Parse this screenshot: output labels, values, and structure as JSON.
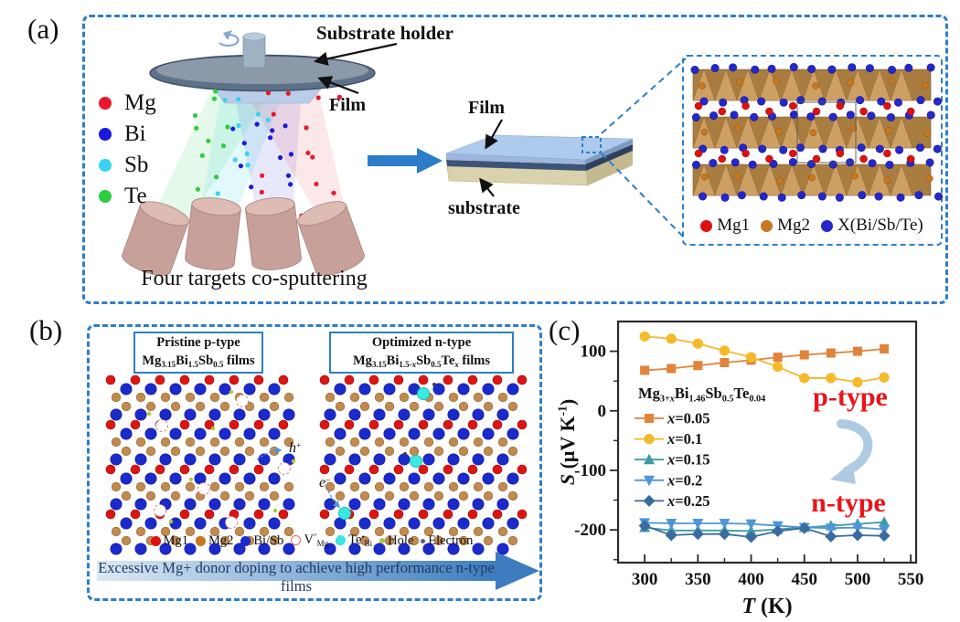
{
  "figure": {
    "panel_a_label": "(a)",
    "panel_b_label": "(b)",
    "panel_c_label": "(c)"
  },
  "panel_a": {
    "substrate_holder_label": "Substrate holder",
    "film_label_top": "Film",
    "caption": "Four targets co-sputtering",
    "legend": [
      {
        "label": "Mg",
        "color": "#E8192C"
      },
      {
        "label": "Bi",
        "color": "#1A1ADB"
      },
      {
        "label": "Sb",
        "color": "#35D3EF"
      },
      {
        "label": "Te",
        "color": "#2ECC40"
      }
    ],
    "slab": {
      "film_label": "Film",
      "substrate_label": "substrate"
    },
    "crystal_legend": [
      {
        "label": "Mg1",
        "color": "#E01010"
      },
      {
        "label": "Mg2",
        "color": "#C87820"
      },
      {
        "label": "X(Bi/Sb/Te)",
        "color": "#2428CC"
      }
    ]
  },
  "panel_b": {
    "left_box": {
      "line1": "Pristine p-type",
      "formula_text": "Mg3.15Bi1.5Sb0.5 films",
      "formula": [
        [
          "n",
          "Mg"
        ],
        [
          "sub",
          "3.15"
        ],
        [
          "n",
          "Bi"
        ],
        [
          "sub",
          "1.5"
        ],
        [
          "n",
          "Sb"
        ],
        [
          "sub",
          "0.5"
        ],
        [
          "n",
          " films"
        ]
      ]
    },
    "right_box": {
      "line1": "Optimized n-type",
      "formula_text": "Mg3.15Bi1.5-xSb0.5Tex films",
      "formula": [
        [
          "n",
          "Mg"
        ],
        [
          "sub",
          "3.15"
        ],
        [
          "n",
          "Bi"
        ],
        [
          "sub",
          "1.5-"
        ],
        [
          "isub",
          "x"
        ],
        [
          "n",
          "Sb"
        ],
        [
          "sub",
          "0.5"
        ],
        [
          "n",
          "Te"
        ],
        [
          "isub",
          "x"
        ],
        [
          "n",
          " films"
        ]
      ]
    },
    "hole_label": [
      [
        "i",
        "h"
      ],
      [
        "sup",
        "+"
      ]
    ],
    "electron_label": [
      [
        "i",
        "e"
      ],
      [
        "sup",
        "−"
      ]
    ],
    "legend": [
      {
        "marker": "dot",
        "color": "#E01010",
        "label": [
          [
            "n",
            "Mg1"
          ]
        ]
      },
      {
        "marker": "dot",
        "color": "#C87820",
        "label": [
          [
            "n",
            "Mg2"
          ]
        ]
      },
      {
        "marker": "dot",
        "color": "#1B2ACB",
        "label": [
          [
            "n",
            "Bi/Sb"
          ]
        ]
      },
      {
        "marker": "open",
        "color": "#E06868",
        "label": [
          [
            "n",
            "V"
          ],
          [
            "sup",
            "″"
          ],
          [
            "sub",
            "Mg"
          ]
        ]
      },
      {
        "marker": "dot",
        "color": "#3BE8E0",
        "label": [
          [
            "n",
            "Te"
          ],
          [
            "sup",
            "•"
          ],
          [
            "sub",
            "Bi"
          ]
        ]
      },
      {
        "marker": "tiny",
        "color": "#AEC836",
        "label": [
          [
            "n",
            "Hole"
          ]
        ]
      },
      {
        "marker": "tinyring",
        "color": "#5A5A7A",
        "label": [
          [
            "n",
            "Electron"
          ]
        ]
      }
    ],
    "banner_text": "Excessive Mg+ donor doping to achieve high performance n-type films"
  },
  "chart_data": {
    "type": "line",
    "title": "",
    "xlabel": "T (K)",
    "ylabel": "S (μV K⁻¹)",
    "xlabel_segments": [
      [
        "i",
        "T"
      ],
      [
        "n",
        " (K)"
      ]
    ],
    "ylabel_segments": [
      [
        "i",
        "S"
      ],
      [
        "n",
        " (μV K"
      ],
      [
        "sup",
        "-1"
      ],
      [
        "n",
        ")"
      ]
    ],
    "x": [
      300,
      325,
      350,
      375,
      400,
      425,
      450,
      475,
      500,
      525
    ],
    "xlim": [
      275,
      555
    ],
    "ylim": [
      -255,
      150
    ],
    "xticks": [
      300,
      350,
      400,
      450,
      500,
      550
    ],
    "yticks": [
      100,
      0,
      -100,
      -200
    ],
    "minor_xticks": [
      325,
      375,
      425,
      475,
      525
    ],
    "minor_yticks": [
      50,
      -50,
      -150,
      -250
    ],
    "grid": false,
    "legend_position": "center-left",
    "legend_title": "Mg3+xBi1.46Sb0.5Te0.04",
    "legend_title_segments": [
      [
        "n",
        "Mg"
      ],
      [
        "sub",
        "3+"
      ],
      [
        "isub",
        "x"
      ],
      [
        "n",
        "Bi"
      ],
      [
        "sub",
        "1.46"
      ],
      [
        "n",
        "Sb"
      ],
      [
        "sub",
        "0.5"
      ],
      [
        "n",
        "Te"
      ],
      [
        "sub",
        "0.04"
      ]
    ],
    "series": [
      {
        "name": "x=0.05",
        "marker": "square",
        "color": "#E2833C",
        "values": [
          68,
          71,
          76,
          81,
          85,
          90,
          94,
          97,
          100,
          104
        ]
      },
      {
        "name": "x=0.1",
        "marker": "circle",
        "color": "#F3BA2A",
        "values": [
          125,
          121,
          113,
          101,
          90,
          74,
          55,
          55,
          48,
          56
        ]
      },
      {
        "name": "x=0.15",
        "marker": "triangle-up",
        "color": "#3D9CA8",
        "values": [
          -196,
          -201,
          -201,
          -201,
          -202,
          -199,
          -196,
          -193,
          -190,
          -187
        ]
      },
      {
        "name": "x=0.2",
        "marker": "triangle-down",
        "color": "#4E95D9",
        "values": [
          -188,
          -189,
          -189,
          -189,
          -190,
          -193,
          -196,
          -197,
          -196,
          -199
        ]
      },
      {
        "name": "x=0.25",
        "marker": "diamond",
        "color": "#3A6B9F",
        "values": [
          -193,
          -209,
          -207,
          -207,
          -212,
          -202,
          -197,
          -211,
          -209,
          -210
        ]
      }
    ],
    "annotations": [
      {
        "text": "p-type",
        "color": "#E8151A"
      },
      {
        "text": "n-type",
        "color": "#E8151A"
      }
    ]
  }
}
